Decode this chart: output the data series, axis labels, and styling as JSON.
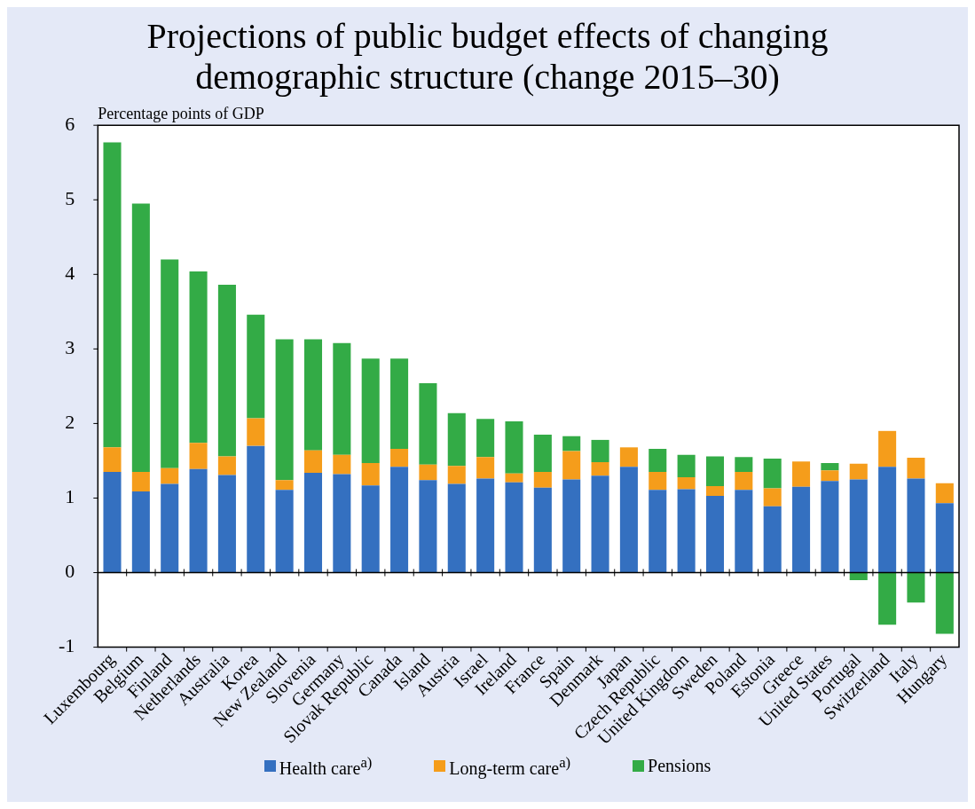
{
  "chart_data": {
    "type": "bar",
    "title": "Projections of public budget effects of changing demographic structure (change 2015–30)",
    "ylabel": "Percentage points of GDP",
    "categories": [
      "Luxembourg",
      "Belgium",
      "Finland",
      "Netherlands",
      "Australia",
      "Korea",
      "New Zealand",
      "Slovenia",
      "Germany",
      "Slovak Republic",
      "Canada",
      "Island",
      "Austria",
      "Israel",
      "Ireland",
      "France",
      "Spain",
      "Denmark",
      "Japan",
      "Czech Republic",
      "United Kingdom",
      "Sweden",
      "Poland",
      "Estonia",
      "Greece",
      "United States",
      "Portugal",
      "Switzerland",
      "Italy",
      "Hungary"
    ],
    "stacked": true,
    "series": [
      {
        "name": "Health care$^{a)}$",
        "color": "#3470c0",
        "values": [
          1.35,
          1.09,
          1.19,
          1.39,
          1.31,
          1.7,
          1.11,
          1.34,
          1.32,
          1.17,
          1.42,
          1.24,
          1.19,
          1.26,
          1.21,
          1.14,
          1.25,
          1.3,
          1.42,
          1.11,
          1.12,
          1.03,
          1.11,
          0.89,
          1.15,
          1.23,
          1.25,
          1.42,
          1.26,
          0.93
        ]
      },
      {
        "name": "Long-term care$^{a)}$",
        "color": "#f59d1b",
        "values": [
          0.33,
          0.26,
          0.21,
          0.35,
          0.25,
          0.37,
          0.13,
          0.3,
          0.26,
          0.3,
          0.24,
          0.21,
          0.24,
          0.29,
          0.12,
          0.21,
          0.38,
          0.18,
          0.26,
          0.24,
          0.16,
          0.13,
          0.24,
          0.24,
          0.34,
          0.14,
          0.21,
          0.48,
          0.28,
          0.27
        ]
      },
      {
        "name": "Pensions",
        "color": "#33ab46",
        "values": [
          4.09,
          3.6,
          2.8,
          2.3,
          2.3,
          1.39,
          1.89,
          1.49,
          1.5,
          1.4,
          1.21,
          1.09,
          0.71,
          0.51,
          0.7,
          0.5,
          0.2,
          0.3,
          null,
          0.31,
          0.3,
          0.4,
          0.2,
          0.4,
          null,
          0.1,
          -0.1,
          -0.7,
          -0.4,
          -0.82
        ]
      }
    ],
    "ylim": [
      -1,
      6
    ],
    "yticks": [
      -1,
      0,
      1,
      2,
      3,
      4,
      5,
      6
    ],
    "ref_lines": [
      {
        "axis": "y",
        "value": 0,
        "color": "#000000",
        "line_style": "solid"
      }
    ],
    "grid": false,
    "legend": "bottom"
  }
}
